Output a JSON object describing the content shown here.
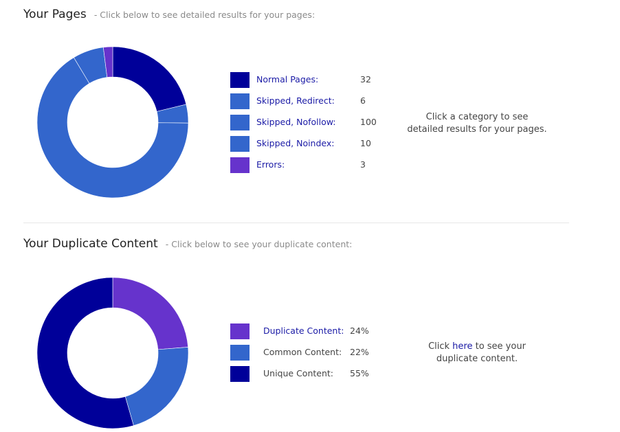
{
  "pages": {
    "title": "Your Pages",
    "subtitle": "- Click below to see detailed results for your pages:",
    "hint_line1": "Click a category to see",
    "hint_line2": "detailed results for your pages."
  },
  "duplicates": {
    "title": "Your Duplicate Content",
    "subtitle": "- Click below to see your duplicate content:",
    "hint_pre": "Click ",
    "hint_link": "here",
    "hint_post": " to see your",
    "hint_line2": "duplicate content."
  },
  "colors": {
    "normal": "#000099",
    "skipped": "#3366cc",
    "errors": "#6633cc",
    "duplicate": "#6633cc",
    "common": "#3366cc",
    "unique": "#000099"
  },
  "chart_data": [
    {
      "type": "pie",
      "donut": true,
      "categories": [
        "Normal Pages:",
        "Skipped, Redirect:",
        "Skipped, Nofollow:",
        "Skipped, Noindex:",
        "Errors:"
      ],
      "values": [
        32,
        6,
        100,
        10,
        3
      ],
      "colors": [
        "#000099",
        "#3366cc",
        "#3366cc",
        "#3366cc",
        "#6633cc"
      ],
      "legend": "right"
    },
    {
      "type": "pie",
      "donut": true,
      "categories": [
        "Duplicate Content:",
        "Common Content:",
        "Unique Content:"
      ],
      "values": [
        24,
        22,
        55
      ],
      "value_labels": [
        "24%",
        "22%",
        "55%"
      ],
      "colors": [
        "#6633cc",
        "#3366cc",
        "#000099"
      ],
      "legend": "right"
    }
  ]
}
